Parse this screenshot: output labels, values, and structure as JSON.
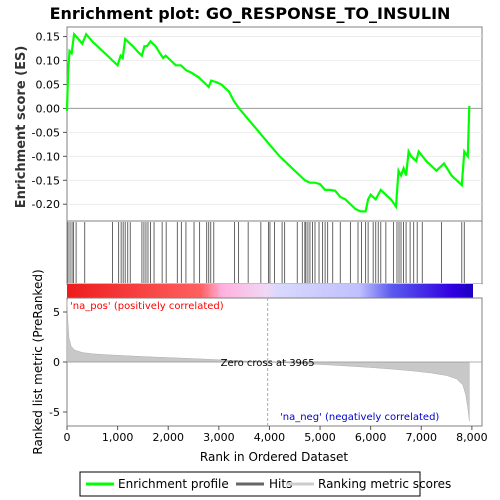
{
  "chart_data": [
    {
      "type": "line",
      "title": "Enrichment plot: GO_RESPONSE_TO_INSULIN",
      "ylabel": "Enrichment score (ES)",
      "xlim": [
        0,
        8200
      ],
      "ylim": [
        -0.235,
        0.17
      ],
      "y_ticks": [
        "0.15",
        "0.10",
        "0.05",
        "0.00",
        "-0.05",
        "-0.10",
        "-0.15",
        "-0.20"
      ],
      "y_tick_values": [
        0.15,
        0.1,
        0.05,
        0.0,
        -0.05,
        -0.1,
        -0.15,
        -0.2
      ],
      "series": [
        {
          "name": "Enrichment profile",
          "color": "#00ff00",
          "x": [
            0,
            20,
            50,
            90,
            140,
            200,
            300,
            380,
            500,
            650,
            800,
            900,
            1000,
            1060,
            1100,
            1150,
            1200,
            1300,
            1400,
            1480,
            1530,
            1580,
            1650,
            1750,
            1850,
            1900,
            1950,
            2050,
            2150,
            2250,
            2350,
            2450,
            2600,
            2750,
            2800,
            2850,
            2950,
            3050,
            3200,
            3300,
            3400,
            3600,
            3800,
            4000,
            4200,
            4400,
            4600,
            4700,
            4800,
            4900,
            5000,
            5100,
            5200,
            5300,
            5400,
            5500,
            5600,
            5700,
            5800,
            5900,
            5950,
            6000,
            6100,
            6200,
            6300,
            6400,
            6500,
            6550,
            6600,
            6650,
            6700,
            6750,
            6800,
            6900,
            6950,
            7100,
            7300,
            7450,
            7600,
            7800,
            7850,
            7920,
            7950
          ],
          "y": [
            -0.005,
            0.07,
            0.12,
            0.115,
            0.155,
            0.148,
            0.135,
            0.155,
            0.14,
            0.125,
            0.11,
            0.1,
            0.09,
            0.11,
            0.105,
            0.145,
            0.14,
            0.13,
            0.118,
            0.11,
            0.13,
            0.13,
            0.14,
            0.13,
            0.113,
            0.105,
            0.11,
            0.1,
            0.09,
            0.09,
            0.08,
            0.075,
            0.065,
            0.05,
            0.045,
            0.058,
            0.055,
            0.05,
            0.035,
            0.015,
            0.0,
            -0.025,
            -0.05,
            -0.075,
            -0.1,
            -0.12,
            -0.14,
            -0.15,
            -0.155,
            -0.155,
            -0.158,
            -0.17,
            -0.17,
            -0.172,
            -0.185,
            -0.19,
            -0.2,
            -0.21,
            -0.215,
            -0.215,
            -0.19,
            -0.18,
            -0.19,
            -0.17,
            -0.18,
            -0.19,
            -0.205,
            -0.13,
            -0.14,
            -0.125,
            -0.14,
            -0.09,
            -0.1,
            -0.11,
            -0.09,
            -0.11,
            -0.13,
            -0.115,
            -0.14,
            -0.16,
            -0.09,
            -0.1,
            0.005
          ]
        }
      ],
      "hits_label": "Hits",
      "hits_x": [
        20,
        60,
        100,
        130,
        180,
        350,
        900,
        1020,
        1070,
        1110,
        1150,
        1200,
        1250,
        1480,
        1520,
        1560,
        1600,
        1650,
        1720,
        1880,
        1960,
        2180,
        2260,
        2350,
        2510,
        2620,
        2760,
        2800,
        2840,
        2900,
        3310,
        3390,
        3580,
        3830,
        3980,
        4010,
        4100,
        4250,
        4300,
        4550,
        4650,
        4700,
        4720,
        4760,
        4800,
        4850,
        4900,
        4980,
        5050,
        5100,
        5150,
        5250,
        5400,
        5600,
        5750,
        5820,
        5900,
        5950,
        6050,
        6100,
        6150,
        6200,
        6300,
        6450,
        6520,
        6560,
        6600,
        6650,
        6700,
        6780,
        6850,
        6920,
        7020,
        7400,
        7800,
        7850
      ],
      "color_bar_stops": [
        "#ee0000",
        "#ff5a5a",
        "#ffbbdd",
        "#ddddff",
        "#3333ee",
        "#1a00d0"
      ]
    },
    {
      "type": "area",
      "xlabel": "Rank in Ordered Dataset",
      "ylabel": "Ranked list metric (PreRanked)",
      "xlim": [
        0,
        8200
      ],
      "ylim": [
        -6.4,
        6.4
      ],
      "x_ticks": [
        "0",
        "1,000",
        "2,000",
        "3,000",
        "4,000",
        "5,000",
        "6,000",
        "7,000",
        "8,000"
      ],
      "x_tick_values": [
        0,
        1000,
        2000,
        3000,
        4000,
        5000,
        6000,
        7000,
        8000
      ],
      "y_ticks": [
        "5",
        "0",
        "-5"
      ],
      "y_tick_values": [
        5,
        0,
        -5
      ],
      "zero_cross": 3965,
      "zero_cross_label": "Zero cross at 3965",
      "pos_label": "'na_pos' (positively correlated)",
      "neg_label": "'na_neg' (negatively correlated)",
      "series": [
        {
          "name": "Ranking metric scores",
          "color": "#c0c0c0",
          "x": [
            0,
            15,
            40,
            80,
            150,
            300,
            500,
            800,
            1200,
            1600,
            2000,
            2400,
            2800,
            3200,
            3600,
            3965,
            4400,
            4800,
            5200,
            5600,
            6000,
            6400,
            6800,
            7200,
            7500,
            7700,
            7820,
            7880,
            7920,
            7950
          ],
          "y": [
            6.2,
            4.2,
            2.4,
            1.6,
            1.2,
            0.95,
            0.82,
            0.72,
            0.62,
            0.52,
            0.44,
            0.36,
            0.27,
            0.17,
            0.08,
            0.0,
            -0.1,
            -0.2,
            -0.3,
            -0.42,
            -0.55,
            -0.7,
            -0.88,
            -1.1,
            -1.35,
            -1.7,
            -2.3,
            -3.3,
            -4.6,
            -5.9
          ]
        }
      ]
    }
  ],
  "legend": [
    {
      "label": "Enrichment profile",
      "color": "#00ff00"
    },
    {
      "label": "Hits",
      "color": "#444444"
    },
    {
      "label": "Ranking metric scores",
      "color": "#c8c8c8"
    }
  ]
}
